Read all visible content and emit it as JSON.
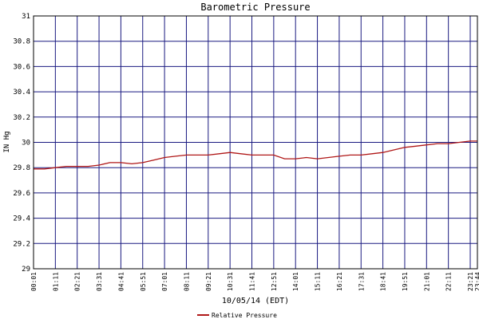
{
  "chart_data": {
    "type": "line",
    "title": "Barometric Pressure",
    "xlabel": "10/05/14 (EDT)",
    "ylabel": "IN Hg",
    "ylim": [
      29,
      31
    ],
    "yticks": [
      "29",
      "29.2",
      "29.4",
      "29.6",
      "29.8",
      "30",
      "30.2",
      "30.4",
      "30.6",
      "30.8",
      "31"
    ],
    "xticks": [
      "00:01",
      "01:11",
      "02:21",
      "03:31",
      "04:41",
      "05:51",
      "07:01",
      "08:11",
      "09:21",
      "10:31",
      "11:41",
      "12:51",
      "14:01",
      "15:11",
      "16:21",
      "17:31",
      "18:41",
      "19:51",
      "21:01",
      "22:11",
      "23:21",
      "23:44"
    ],
    "grid": true,
    "legend_position": "bottom",
    "colors": {
      "series": "#b01818",
      "grid": "#1a1a80",
      "axis": "#000000"
    },
    "series": [
      {
        "name": "Relative Pressure",
        "x": [
          "00:01",
          "00:36",
          "01:11",
          "01:46",
          "02:21",
          "02:56",
          "03:31",
          "04:06",
          "04:41",
          "05:16",
          "05:51",
          "06:26",
          "07:01",
          "07:36",
          "08:11",
          "08:46",
          "09:21",
          "09:56",
          "10:31",
          "11:06",
          "11:41",
          "12:16",
          "12:51",
          "13:26",
          "14:01",
          "14:36",
          "15:11",
          "15:46",
          "16:21",
          "16:56",
          "17:31",
          "18:06",
          "18:41",
          "19:16",
          "19:51",
          "20:26",
          "21:01",
          "21:36",
          "22:11",
          "22:46",
          "23:21",
          "23:44"
        ],
        "values": [
          29.79,
          29.79,
          29.8,
          29.81,
          29.81,
          29.81,
          29.82,
          29.84,
          29.84,
          29.83,
          29.84,
          29.86,
          29.88,
          29.89,
          29.9,
          29.9,
          29.9,
          29.91,
          29.92,
          29.91,
          29.9,
          29.9,
          29.9,
          29.87,
          29.87,
          29.88,
          29.87,
          29.88,
          29.89,
          29.9,
          29.9,
          29.91,
          29.92,
          29.94,
          29.96,
          29.97,
          29.98,
          29.99,
          29.99,
          30.0,
          30.01,
          30.01
        ]
      }
    ]
  }
}
